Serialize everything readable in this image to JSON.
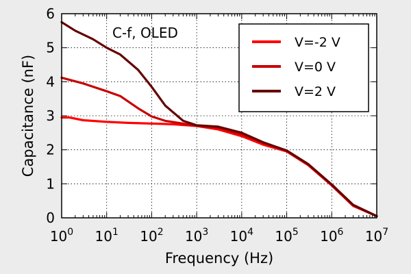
{
  "chart_data": {
    "type": "line",
    "annotation": "C-f, OLED",
    "xlabel": "Frequency (Hz)",
    "ylabel": "Capacitance (nF)",
    "xscale": "log",
    "xlim": [
      1,
      10000000
    ],
    "ylim": [
      0,
      6
    ],
    "x_ticks": [
      {
        "value": 1,
        "base": "10",
        "exp": "0"
      },
      {
        "value": 10,
        "base": "10",
        "exp": "1"
      },
      {
        "value": 100,
        "base": "10",
        "exp": "2"
      },
      {
        "value": 1000,
        "base": "10",
        "exp": "3"
      },
      {
        "value": 10000,
        "base": "10",
        "exp": "4"
      },
      {
        "value": 100000,
        "base": "10",
        "exp": "5"
      },
      {
        "value": 1000000,
        "base": "10",
        "exp": "6"
      },
      {
        "value": 10000000,
        "base": "10",
        "exp": "7"
      }
    ],
    "y_ticks": [
      "0",
      "1",
      "2",
      "3",
      "4",
      "5",
      "6"
    ],
    "grid": true,
    "legend_position": "top-right",
    "series": [
      {
        "name": "V=-2 V",
        "color": "#ff0000",
        "x": [
          1,
          1.5,
          3,
          10,
          30,
          100,
          300,
          1000,
          3000,
          10000,
          30000,
          100000,
          300000,
          1000000,
          3000000,
          10000000
        ],
        "y": [
          2.95,
          2.95,
          2.87,
          2.82,
          2.79,
          2.77,
          2.75,
          2.7,
          2.6,
          2.4,
          2.15,
          1.95,
          1.55,
          0.95,
          0.35,
          0.05
        ]
      },
      {
        "name": "V=0 V",
        "color": "#c80000",
        "x": [
          1,
          3,
          10,
          20,
          50,
          100,
          200,
          500,
          1000,
          3000,
          10000,
          30000,
          100000,
          300000,
          1000000,
          3000000,
          10000000
        ],
        "y": [
          4.12,
          3.95,
          3.72,
          3.58,
          3.22,
          2.98,
          2.85,
          2.77,
          2.7,
          2.65,
          2.45,
          2.2,
          1.97,
          1.57,
          0.97,
          0.37,
          0.05
        ]
      },
      {
        "name": "V=2 V",
        "color": "#640000",
        "x": [
          1,
          2,
          5,
          10,
          20,
          50,
          100,
          200,
          500,
          1000,
          3000,
          10000,
          30000,
          100000,
          300000,
          1000000,
          3000000,
          10000000
        ],
        "y": [
          5.75,
          5.5,
          5.25,
          5.0,
          4.8,
          4.35,
          3.85,
          3.3,
          2.85,
          2.72,
          2.68,
          2.5,
          2.22,
          1.98,
          1.58,
          0.98,
          0.38,
          0.05
        ]
      }
    ]
  }
}
